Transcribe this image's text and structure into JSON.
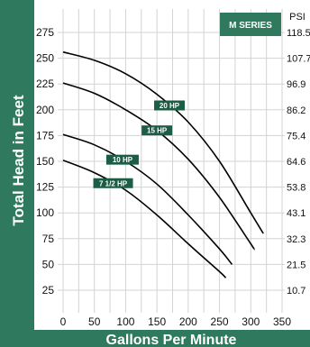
{
  "chart_data": {
    "type": "line",
    "badge": "M SERIES",
    "xlabel": "Gallons Per Minute",
    "ylabel": "Total Head in Feet",
    "right_axis_unit": "PSI",
    "xlim": [
      0,
      350
    ],
    "ylim": [
      0,
      290
    ],
    "x_ticks": [
      "0",
      "50",
      "100",
      "150",
      "200",
      "250",
      "300",
      "350"
    ],
    "y_ticks": [
      "275",
      "250",
      "225",
      "200",
      "175",
      "150",
      "125",
      "100",
      "75",
      "50",
      "25"
    ],
    "psi_ticks": [
      "118.5",
      "107.7",
      "96.9",
      "86.2",
      "75.4",
      "64.6",
      "53.8",
      "43.1",
      "32.3",
      "21.5",
      "10.7"
    ],
    "grid": true,
    "series": [
      {
        "name": "20 HP",
        "x": [
          0,
          50,
          100,
          150,
          200,
          250,
          300,
          320
        ],
        "y": [
          256,
          248,
          235,
          215,
          188,
          150,
          100,
          80
        ]
      },
      {
        "name": "15 HP",
        "x": [
          0,
          50,
          100,
          150,
          200,
          250,
          300,
          305
        ],
        "y": [
          226,
          216,
          200,
          180,
          152,
          115,
          70,
          65
        ]
      },
      {
        "name": "10 HP",
        "x": [
          0,
          50,
          100,
          150,
          200,
          250,
          270
        ],
        "y": [
          176,
          166,
          150,
          128,
          98,
          65,
          50
        ]
      },
      {
        "name": "7 1/2 HP",
        "x": [
          0,
          50,
          100,
          150,
          200,
          250,
          260
        ],
        "y": [
          151,
          139,
          122,
          98,
          70,
          43,
          37
        ]
      }
    ]
  },
  "colors": {
    "band": "#2f7a5e",
    "label_bg": "#1b5e45",
    "line": "#000000",
    "grid": "#d3d3d3"
  }
}
